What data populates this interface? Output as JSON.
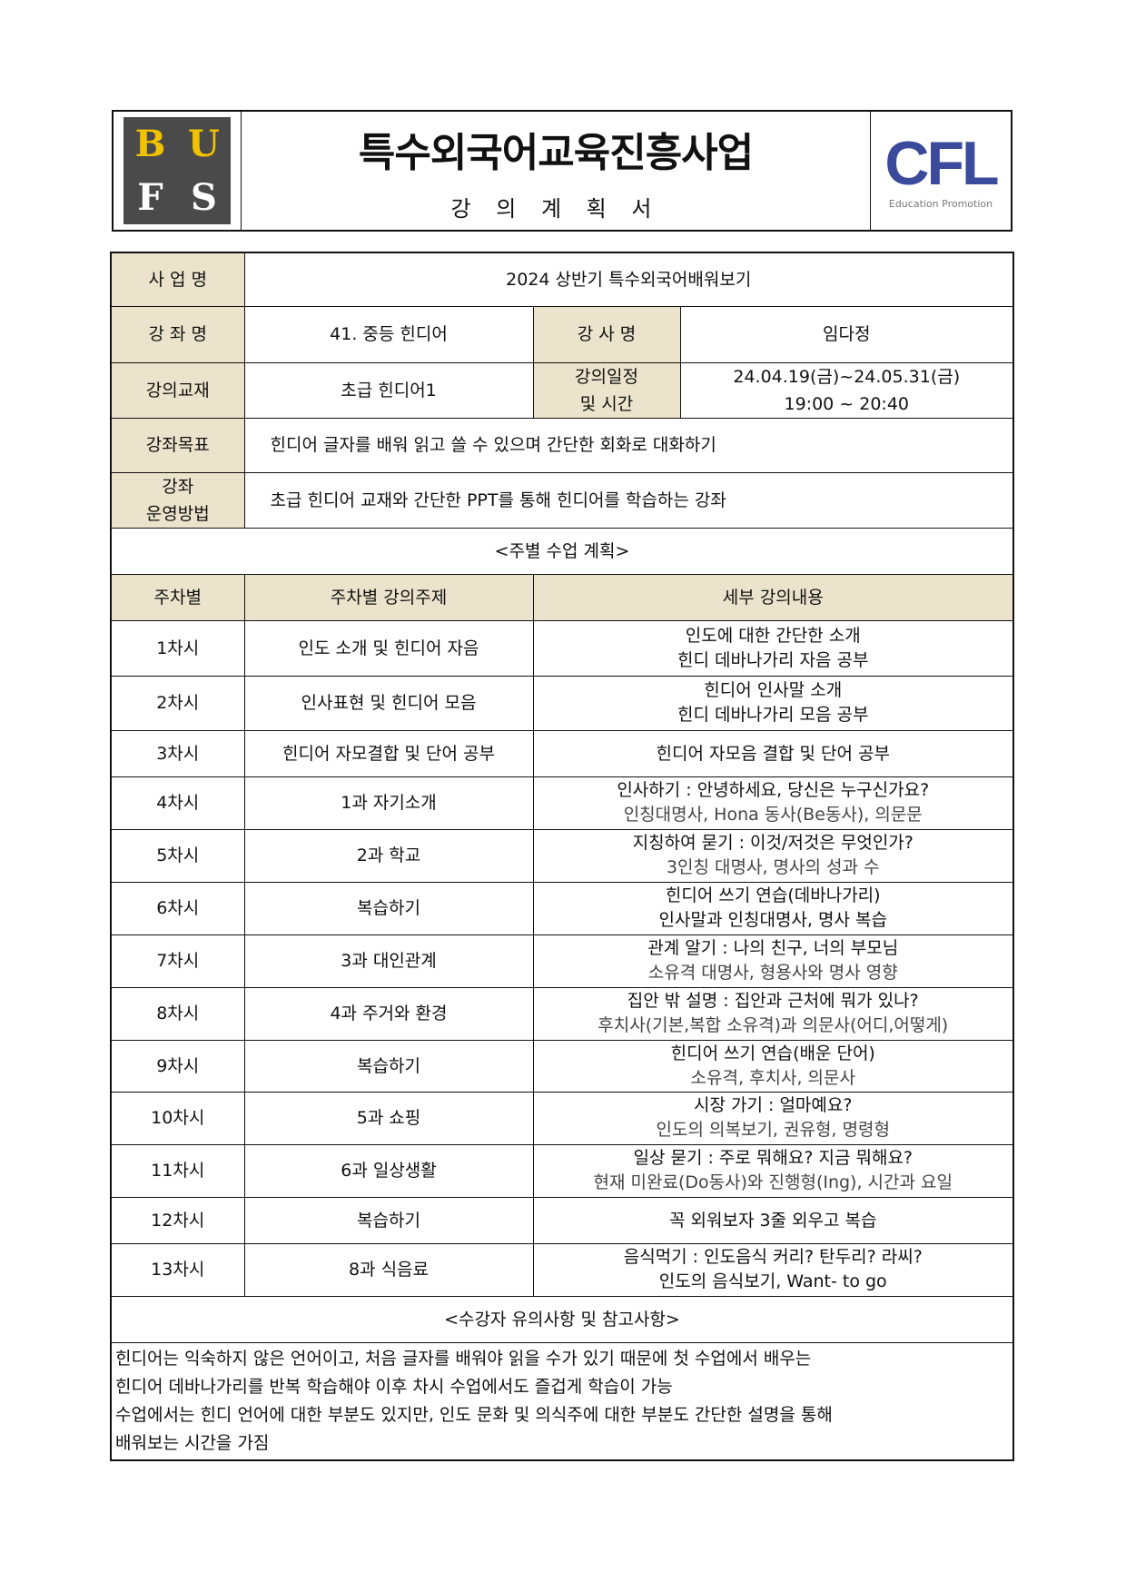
{
  "header": {
    "logo_left": "BUFS",
    "title": "특수외국어교육진흥사업",
    "subtitle": "강 의 계 획 서",
    "logo_right": "CFL",
    "logo_right_sub": "Education Promotion"
  },
  "info": {
    "project_label": "사 업 명",
    "project": "2024 상반기 특수외국어배워보기",
    "course_label": "강 좌 명",
    "course": "41. 중등 힌디어",
    "instructor_label": "강 사 명",
    "instructor": "임다정",
    "textbook_label": "강의교재",
    "textbook": "초급 힌디어1",
    "schedule_label_1": "강의일정",
    "schedule_label_2": "및 시간",
    "dates": "24.04.19(금)~24.05.31(금)",
    "time": "19:00 ~ 20:40",
    "goal_label": "강좌목표",
    "goal": "힌디어 글자를 배워 읽고 쓸 수 있으며 간단한 회화로 대화하기",
    "method_label_1": "강좌",
    "method_label_2": "운영방법",
    "method": "초급 힌디어 교재와 간단한 PPT를 통해 힌디어를 학습하는 강좌"
  },
  "weekly": {
    "title": "<주별 수업 계획>",
    "col_week": "주차별",
    "col_topic": "주차별 강의주제",
    "col_detail": "세부 강의내용",
    "rows": [
      {
        "week": "1차시",
        "topic": "인도 소개 및 힌디어 자음",
        "l1": "인도에 대한 간단한 소개",
        "l2": "힌디 데바나가리 자음 공부"
      },
      {
        "week": "2차시",
        "topic": "인사표현 및 힌디어 모음",
        "l1": "힌디어 인사말 소개",
        "l2": "힌디 데바나가리 모음 공부"
      },
      {
        "week": "3차시",
        "topic": "힌디어 자모결합 및 단어 공부",
        "l1": "힌디어 자모음 결합 및 단어 공부"
      },
      {
        "week": "4차시",
        "topic": "1과 자기소개",
        "l1": "인사하기 : 안녕하세요, 당신은 누구신가요?",
        "l2": "인칭대명사, Hona 동사(Be동사), 의문문"
      },
      {
        "week": "5차시",
        "topic": "2과 학교",
        "l1": "지칭하여 묻기 : 이것/저것은 무엇인가?",
        "l2": "3인칭 대명사, 명사의 성과 수"
      },
      {
        "week": "6차시",
        "topic": "복습하기",
        "l1": "힌디어 쓰기 연습(데바나가리)",
        "l2": "인사말과 인칭대명사, 명사 복습"
      },
      {
        "week": "7차시",
        "topic": "3과 대인관계",
        "l1": "관계 알기 : 나의 친구, 너의 부모님",
        "l2": "소유격 대명사, 형용사와 명사 영향"
      },
      {
        "week": "8차시",
        "topic": "4과 주거와 환경",
        "l1": "집안 밖 설명 : 집안과 근처에 뭐가 있나?",
        "l2": "후치사(기본,복합 소유격)과 의문사(어디,어떻게)"
      },
      {
        "week": "9차시",
        "topic": "복습하기",
        "l1": "힌디어 쓰기 연습(배운 단어)",
        "l2": "소유격, 후치사, 의문사"
      },
      {
        "week": "10차시",
        "topic": "5과 쇼핑",
        "l1": "시장 가기 : 얼마예요?",
        "l2": "인도의 의복보기, 권유형, 명령형"
      },
      {
        "week": "11차시",
        "topic": "6과 일상생활",
        "l1": "일상 묻기 : 주로 뭐해요? 지금 뭐해요?",
        "l2": "현재 미완료(Do동사)와 진행형(Ing), 시간과 요일"
      },
      {
        "week": "12차시",
        "topic": "복습하기",
        "l1": "꼭 외워보자 3줄 외우고 복습"
      },
      {
        "week": "13차시",
        "topic": "8과 식음료",
        "l1": "음식먹기 : 인도음식 커리? 탄두리? 라씨?",
        "l2": "인도의 음식보기, Want- to go"
      }
    ]
  },
  "notes": {
    "title": "<수강자 유의사항 및 참고사항>",
    "lines": [
      "힌디어는 익숙하지 않은 언어이고, 처음 글자를 배워야 읽을 수가 있기 때문에 첫 수업에서 배우는",
      "힌디어 데바나가리를 반복 학습해야 이후 차시 수업에서도 즐겁게 학습이 가능",
      "수업에서는 힌디 언어에 대한 부분도 있지만, 인도 문화 및 의식주에 대한 부분도 간단한 설명을 통해",
      "배워보는 시간을 가짐"
    ]
  }
}
